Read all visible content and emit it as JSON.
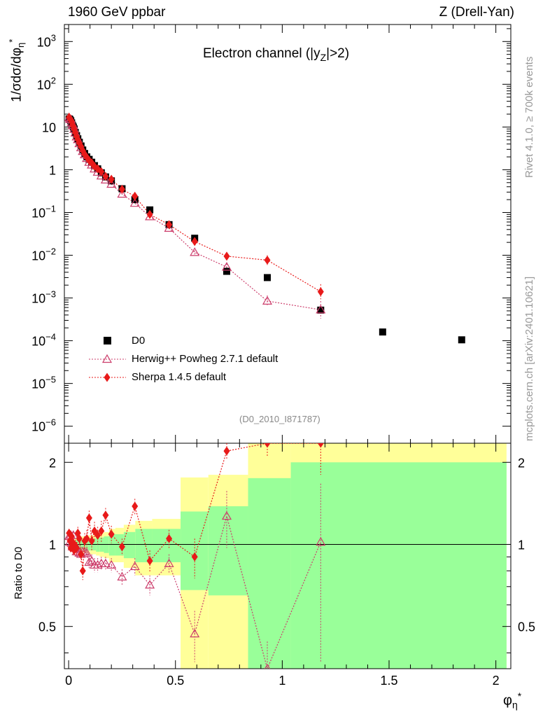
{
  "header": {
    "left": "1960 GeV ppbar",
    "right": "Z (Drell-Yan)"
  },
  "side": {
    "rivet": "Rivet 4.1.0, ≥ 700k events",
    "mcplots": "mcplots.cern.ch [arXiv:2401.10621]"
  },
  "chart_data": {
    "type": "scatter",
    "title_parts": {
      "pre": "Electron channel (|y",
      "sub": "Z",
      "post": "|>2)"
    },
    "analysis_id": "(D0_2010_I871787)",
    "xlabel": {
      "base": "φ",
      "sup": "*",
      "sub": "η"
    },
    "ylabel": {
      "main": "1/σdσ/dφ",
      "sup": "*",
      "sub": "η"
    },
    "ratio_ylabel": "Ratio to D0",
    "xlim": [
      -0.02,
      2.07
    ],
    "ylim": [
      4e-07,
      2500
    ],
    "ratio_ylim": [
      0.35,
      2.35
    ],
    "x_ticks": [
      0,
      0.5,
      1,
      1.5,
      2
    ],
    "x_tick_labels": [
      "0",
      "0.5",
      "1",
      "1.5",
      "2"
    ],
    "y_ticks": [
      1e-06,
      1e-05,
      0.0001,
      0.001,
      0.01,
      0.1,
      1,
      10,
      100,
      1000
    ],
    "y_tick_labels": [
      {
        "base": "10",
        "exp": "−6"
      },
      {
        "base": "10",
        "exp": "−5"
      },
      {
        "base": "10",
        "exp": "−4"
      },
      {
        "base": "10",
        "exp": "−3"
      },
      {
        "base": "10",
        "exp": "−2"
      },
      {
        "base": "10",
        "exp": "−1"
      },
      {
        "base": "1",
        "exp": ""
      },
      {
        "base": "10",
        "exp": ""
      },
      {
        "base": "10",
        "exp": "2"
      },
      {
        "base": "10",
        "exp": "3"
      }
    ],
    "ratio_ticks": [
      0.5,
      1,
      2
    ],
    "ratio_tick_labels": [
      "0.5",
      "1",
      "2"
    ],
    "legend": [
      {
        "label": "D0"
      },
      {
        "label": "Herwig++ Powheg 2.7.1 default"
      },
      {
        "label": "Sherpa 1.4.5 default"
      }
    ],
    "x": [
      0.002,
      0.006,
      0.01,
      0.014,
      0.018,
      0.022,
      0.026,
      0.031,
      0.037,
      0.043,
      0.05,
      0.058,
      0.066,
      0.075,
      0.085,
      0.096,
      0.108,
      0.121,
      0.136,
      0.153,
      0.173,
      0.2,
      0.25,
      0.31,
      0.38,
      0.47,
      0.59,
      0.74,
      0.93,
      1.18,
      1.47,
      1.84
    ],
    "bin_edges": [
      0,
      0.004,
      0.008,
      0.012,
      0.016,
      0.02,
      0.024,
      0.029,
      0.034,
      0.039,
      0.045,
      0.051,
      0.057,
      0.064,
      0.072,
      0.081,
      0.091,
      0.102,
      0.114,
      0.128,
      0.145,
      0.165,
      0.189,
      0.219,
      0.258,
      0.312,
      0.391,
      0.524,
      0.654,
      0.84,
      1.04,
      1.31,
      2.05
    ],
    "series": [
      {
        "name": "D0",
        "values": [
          15.5,
          15,
          14,
          12.5,
          11,
          10,
          9,
          7.5,
          6.3,
          5.3,
          4.4,
          3.6,
          2.9,
          2.4,
          2.0,
          1.75,
          1.5,
          1.25,
          1.05,
          0.85,
          0.68,
          0.55,
          0.36,
          0.2,
          0.115,
          0.052,
          0.025,
          0.0042,
          0.003,
          0.00052,
          0.00016,
          0.000105
        ]
      },
      {
        "name": "Herwig++ Powheg 2.7.1 default",
        "values": [
          16.5,
          15.2,
          15.0,
          12.6,
          10.8,
          10.8,
          8.9,
          7.3,
          5.9,
          5.1,
          4.1,
          3.3,
          2.7,
          2.25,
          1.85,
          1.5,
          1.3,
          1.05,
          0.88,
          0.72,
          0.58,
          0.46,
          0.27,
          0.165,
          0.08,
          0.043,
          0.0117,
          0.0053,
          0.00085,
          0.00053
        ],
        "errors": [
          0.03,
          0.03,
          0.03,
          0.03,
          0.03,
          0.03,
          0.03,
          0.03,
          0.04,
          0.04,
          0.04,
          0.04,
          0.04,
          0.04,
          0.04,
          0.04,
          0.05,
          0.05,
          0.05,
          0.05,
          0.05,
          0.05,
          0.06,
          0.06,
          0.07,
          0.08,
          0.12,
          0.2,
          0.35,
          0.6
        ],
        "ratio": [
          1.07,
          1.02,
          1.08,
          1.01,
          0.98,
          1.08,
          0.99,
          0.97,
          0.94,
          0.96,
          0.93,
          0.92,
          0.94,
          0.94,
          0.93,
          0.86,
          0.87,
          0.84,
          0.84,
          0.85,
          0.85,
          0.84,
          0.76,
          0.83,
          0.71,
          0.85,
          0.47,
          1.27,
          0.29,
          1.02
        ],
        "ratio_errors": [
          0.03,
          0.03,
          0.03,
          0.03,
          0.03,
          0.03,
          0.03,
          0.04,
          0.04,
          0.04,
          0.04,
          0.04,
          0.04,
          0.04,
          0.04,
          0.05,
          0.05,
          0.05,
          0.05,
          0.05,
          0.05,
          0.05,
          0.05,
          0.06,
          0.06,
          0.07,
          0.1,
          0.3,
          0.15,
          0.65
        ]
      },
      {
        "name": "Sherpa 1.4.5 default",
        "values": [
          17,
          15.4,
          14.8,
          13.4,
          11.3,
          10.3,
          8.8,
          7.4,
          6.0,
          5.1,
          4.2,
          3.5,
          2.8,
          2.3,
          1.95,
          1.65,
          1.45,
          1.2,
          1.05,
          0.9,
          0.7,
          0.6,
          0.35,
          0.24,
          0.09,
          0.052,
          0.021,
          0.0095,
          0.0077,
          0.0014
        ],
        "errors": [
          0.03,
          0.03,
          0.03,
          0.03,
          0.03,
          0.03,
          0.03,
          0.03,
          0.04,
          0.04,
          0.04,
          0.04,
          0.04,
          0.04,
          0.04,
          0.04,
          0.05,
          0.05,
          0.05,
          0.05,
          0.05,
          0.05,
          0.06,
          0.06,
          0.07,
          0.08,
          0.12,
          0.2,
          0.3,
          0.5
        ],
        "ratio": [
          1.1,
          1.03,
          0.97,
          1.07,
          1.02,
          0.97,
          0.95,
          0.99,
          0.97,
          1.1,
          1.05,
          0.92,
          0.8,
          1.03,
          1.05,
          1.25,
          1.03,
          1.12,
          1.08,
          1.12,
          1.28,
          1.09,
          0.98,
          1.38,
          0.87,
          1.05,
          0.9,
          2.2,
          2.6,
          2.7
        ],
        "ratio_errors": [
          0.03,
          0.04,
          0.03,
          0.04,
          0.04,
          0.04,
          0.04,
          0.05,
          0.05,
          0.06,
          0.06,
          0.06,
          0.06,
          0.07,
          0.08,
          0.08,
          0.08,
          0.09,
          0.08,
          0.1,
          0.08,
          0.08,
          0.07,
          0.09,
          0.08,
          0.08,
          0.15,
          0.15,
          0.5,
          0.9
        ]
      }
    ],
    "bands": {
      "yellow_low": [
        0.95,
        0.95,
        0.95,
        0.95,
        0.95,
        0.95,
        0.95,
        0.95,
        0.94,
        0.94,
        0.94,
        0.94,
        0.93,
        0.93,
        0.93,
        0.93,
        0.92,
        0.92,
        0.92,
        0.91,
        0.9,
        0.89,
        0.86,
        0.86,
        0.82,
        0.77,
        0.77,
        0.35,
        0.35,
        0.35,
        0.35,
        0.35
      ],
      "yellow_high": [
        1.05,
        1.05,
        1.05,
        1.05,
        1.05,
        1.05,
        1.05,
        1.05,
        1.06,
        1.06,
        1.06,
        1.06,
        1.07,
        1.07,
        1.07,
        1.07,
        1.08,
        1.08,
        1.08,
        1.09,
        1.1,
        1.11,
        1.14,
        1.15,
        1.18,
        1.22,
        1.24,
        1.76,
        1.8,
        2.35,
        2.35,
        2.35
      ],
      "green_low": [
        0.97,
        0.97,
        0.97,
        0.97,
        0.97,
        0.97,
        0.97,
        0.97,
        0.96,
        0.96,
        0.96,
        0.96,
        0.96,
        0.96,
        0.95,
        0.95,
        0.95,
        0.95,
        0.95,
        0.94,
        0.94,
        0.93,
        0.91,
        0.91,
        0.89,
        0.86,
        0.86,
        0.68,
        0.65,
        0.35,
        0.35,
        0.35
      ],
      "green_high": [
        1.03,
        1.03,
        1.03,
        1.03,
        1.03,
        1.03,
        1.03,
        1.03,
        1.04,
        1.04,
        1.04,
        1.04,
        1.04,
        1.04,
        1.05,
        1.05,
        1.05,
        1.05,
        1.05,
        1.06,
        1.06,
        1.07,
        1.09,
        1.09,
        1.11,
        1.14,
        1.14,
        1.32,
        1.38,
        1.75,
        2.0,
        2.0
      ]
    },
    "colors": {
      "data": "#000000",
      "herwig": "#cc3d6b",
      "sherpa": "#e81a1a",
      "band_yellow": "#ffff99",
      "band_green": "#99ff99"
    }
  }
}
